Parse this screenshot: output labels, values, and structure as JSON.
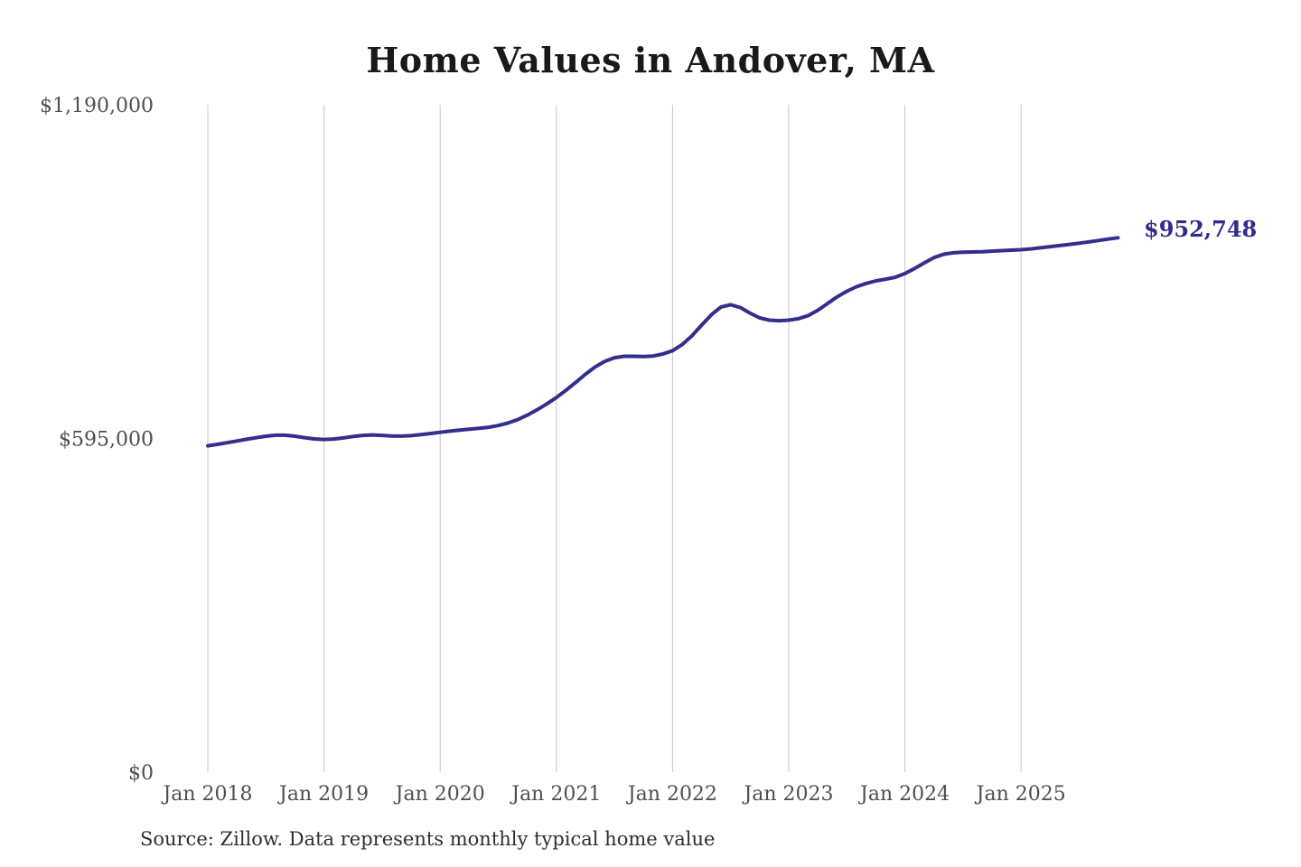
{
  "chart_data": {
    "type": "line",
    "title": "Home Values in Andover, MA",
    "source": "Source: Zillow. Data represents monthly typical home value",
    "end_label": "$952,748",
    "latest_value": 952748,
    "x_start": "Jan 2018",
    "x_end": "Nov 2025",
    "x_frequency": "monthly",
    "ylim": [
      0,
      1190000
    ],
    "grid": "vertical-only",
    "line_color": "#342e8c",
    "annotation_color": "#332b8c",
    "gridline_color": "#c7c7c7",
    "axis_label_color": "#4f4f4f",
    "yticks": [
      {
        "label": "$0",
        "value": 0
      },
      {
        "label": "$595,000",
        "value": 595000
      },
      {
        "label": "$1,190,000",
        "value": 1190000
      }
    ],
    "xticks": [
      {
        "label": "Jan 2018",
        "month": 0
      },
      {
        "label": "Jan 2019",
        "month": 12
      },
      {
        "label": "Jan 2020",
        "month": 24
      },
      {
        "label": "Jan 2021",
        "month": 36
      },
      {
        "label": "Jan 2022",
        "month": 48
      },
      {
        "label": "Jan 2023",
        "month": 60
      },
      {
        "label": "Jan 2024",
        "month": 72
      },
      {
        "label": "Jan 2025",
        "month": 84
      }
    ],
    "values": [
      582000,
      584500,
      587500,
      590500,
      593500,
      596500,
      599000,
      600800,
      600800,
      599000,
      596500,
      594200,
      593200,
      594000,
      596000,
      598500,
      600500,
      601200,
      600500,
      599500,
      599200,
      600000,
      601800,
      603800,
      606000,
      608000,
      610000,
      611500,
      613000,
      615000,
      618000,
      622500,
      628500,
      636500,
      646000,
      656500,
      668000,
      681000,
      695000,
      709500,
      722500,
      732500,
      739000,
      741500,
      741500,
      741000,
      742000,
      745500,
      751500,
      762500,
      778000,
      797000,
      815500,
      829500,
      833500,
      828500,
      818500,
      810000,
      806000,
      805000,
      806000,
      808500,
      814000,
      823500,
      835500,
      847500,
      857500,
      865500,
      871500,
      876000,
      879000,
      882500,
      889000,
      898000,
      908000,
      917500,
      923500,
      926000,
      927000,
      927500,
      928000,
      929000,
      930000,
      930800,
      931500,
      933000,
      935000,
      937000,
      939000,
      941000,
      943200,
      945500,
      948000,
      950500,
      952748
    ]
  }
}
